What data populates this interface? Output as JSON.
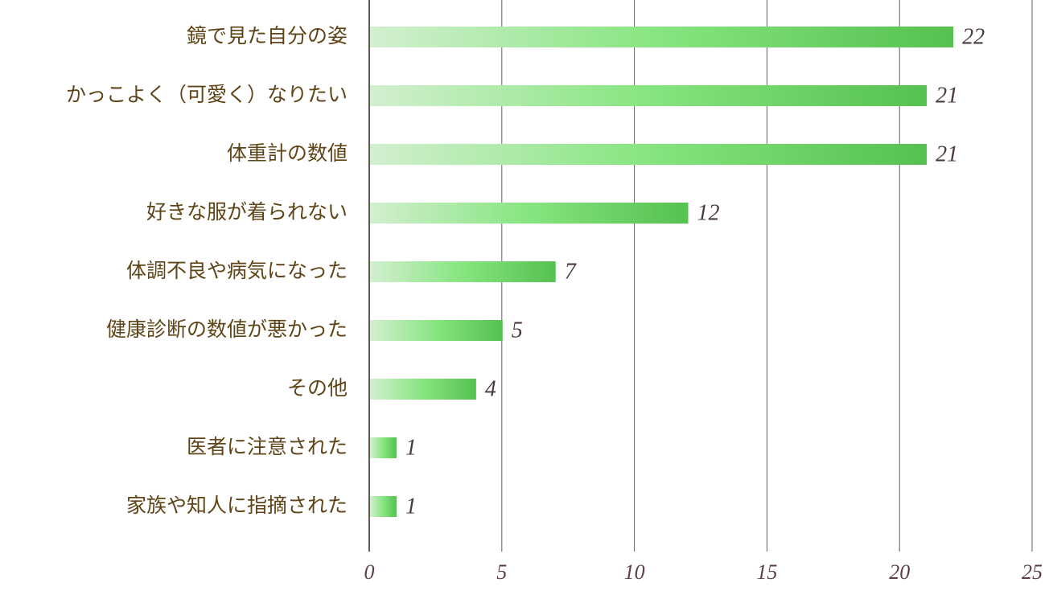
{
  "chart_data": {
    "type": "bar",
    "orientation": "horizontal",
    "categories": [
      "鏡で見た自分の姿",
      "かっこよく（可愛く）なりたい",
      "体重計の数値",
      "好きな服が着られない",
      "体調不良や病気になった",
      "健康診断の数値が悪かった",
      "その他",
      "医者に注意された",
      "家族や知人に指摘された"
    ],
    "values": [
      22,
      21,
      21,
      12,
      7,
      5,
      4,
      1,
      1
    ],
    "gradient": [
      "#d3efd0",
      "#86e57f",
      "#55c150"
    ],
    "xlim": [
      0,
      25
    ],
    "xticks": [
      0,
      5,
      10,
      15,
      20,
      25
    ],
    "grid": true
  }
}
